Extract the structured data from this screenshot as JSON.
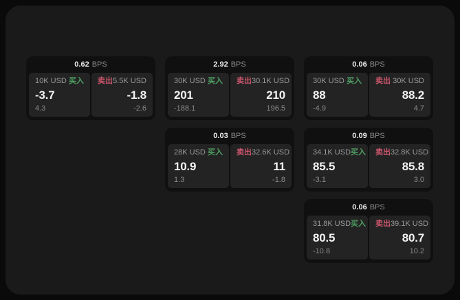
{
  "theme": {
    "page_bg": "#0a0a0a",
    "surface_bg": "#1a1a1a",
    "card_bg": "#101010",
    "panel_bg": "#232323",
    "text_primary": "#f2f2f2",
    "text_muted": "#8a8a8a",
    "buy_color": "#4f9e63",
    "sell_color": "#c9556b"
  },
  "labels": {
    "buy": "买入",
    "sell": "卖出",
    "bps_unit": "BPS"
  },
  "cards": [
    {
      "bps": "0.62",
      "buy": {
        "amount": "10K USD",
        "value": "-3.7",
        "change": "4.3"
      },
      "sell": {
        "amount": "5.5K USD",
        "value": "-1.8",
        "change": "-2.6"
      }
    },
    {
      "bps": "2.92",
      "buy": {
        "amount": "30K USD",
        "value": "201",
        "change": "-188.1"
      },
      "sell": {
        "amount": "30.1K USD",
        "value": "210",
        "change": "196.5"
      }
    },
    {
      "bps": "0.06",
      "buy": {
        "amount": "30K USD",
        "value": "88",
        "change": "-4.9"
      },
      "sell": {
        "amount": "30K USD",
        "value": "88.2",
        "change": "4.7"
      }
    },
    {
      "bps": "0.03",
      "buy": {
        "amount": "28K USD",
        "value": "10.9",
        "change": "1.3"
      },
      "sell": {
        "amount": "32.6K USD",
        "value": "11",
        "change": "-1.8"
      }
    },
    {
      "bps": "0.09",
      "buy": {
        "amount": "34.1K USD",
        "value": "85.5",
        "change": "-3.1"
      },
      "sell": {
        "amount": "32.8K USD",
        "value": "85.8",
        "change": "3.0"
      }
    },
    {
      "bps": "0.06",
      "buy": {
        "amount": "31.8K USD",
        "value": "80.5",
        "change": "-10.8"
      },
      "sell": {
        "amount": "39.1K USD",
        "value": "80.7",
        "change": "10.2"
      }
    }
  ]
}
